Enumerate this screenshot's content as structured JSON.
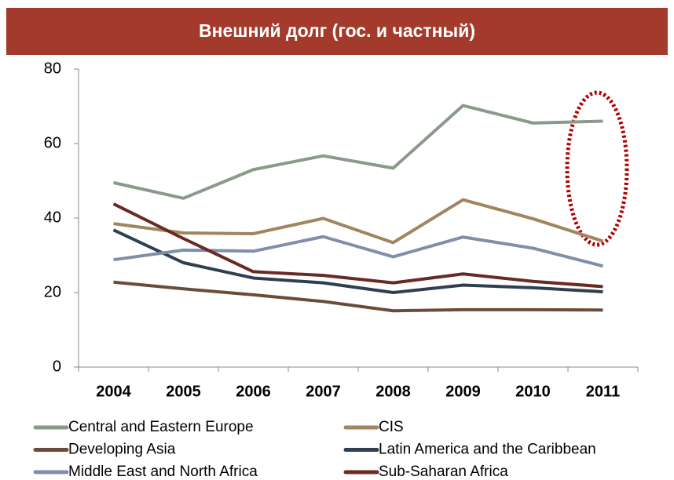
{
  "chart_data": {
    "type": "line",
    "title": "Внешний долг (гос. и частный)",
    "categories": [
      "2004",
      "2005",
      "2006",
      "2007",
      "2008",
      "2009",
      "2010",
      "2011"
    ],
    "series": [
      {
        "name": "Central and Eastern Europe",
        "color": "#8a9a8a",
        "values": [
          49.5,
          45.3,
          53,
          56.7,
          53.4,
          70.2,
          65.5,
          66
        ]
      },
      {
        "name": "CIS",
        "color": "#a08560",
        "values": [
          38.5,
          36,
          35.8,
          39.9,
          33.4,
          44.9,
          39.8,
          33.8
        ]
      },
      {
        "name": "Developing Asia",
        "color": "#6b4c3a",
        "values": [
          22.8,
          21,
          19.4,
          17.6,
          15.1,
          15.4,
          15.4,
          15.3
        ]
      },
      {
        "name": "Latin America and the Caribbean",
        "color": "#2f3f4f",
        "values": [
          36.8,
          28,
          23.9,
          22.6,
          20,
          22,
          21.3,
          20.2
        ]
      },
      {
        "name": "Middle East and North Africa",
        "color": "#7f8fa8",
        "values": [
          28.8,
          31.4,
          31.1,
          35,
          29.6,
          34.9,
          31.9,
          27.1
        ]
      },
      {
        "name": "Sub-Saharan Africa",
        "color": "#6a2a24",
        "values": [
          43.8,
          34.5,
          25.6,
          24.6,
          22.6,
          25,
          23,
          21.6
        ]
      }
    ],
    "ylim": [
      0,
      80
    ],
    "yticks": [
      0,
      20,
      40,
      60,
      80
    ],
    "grid": false
  }
}
